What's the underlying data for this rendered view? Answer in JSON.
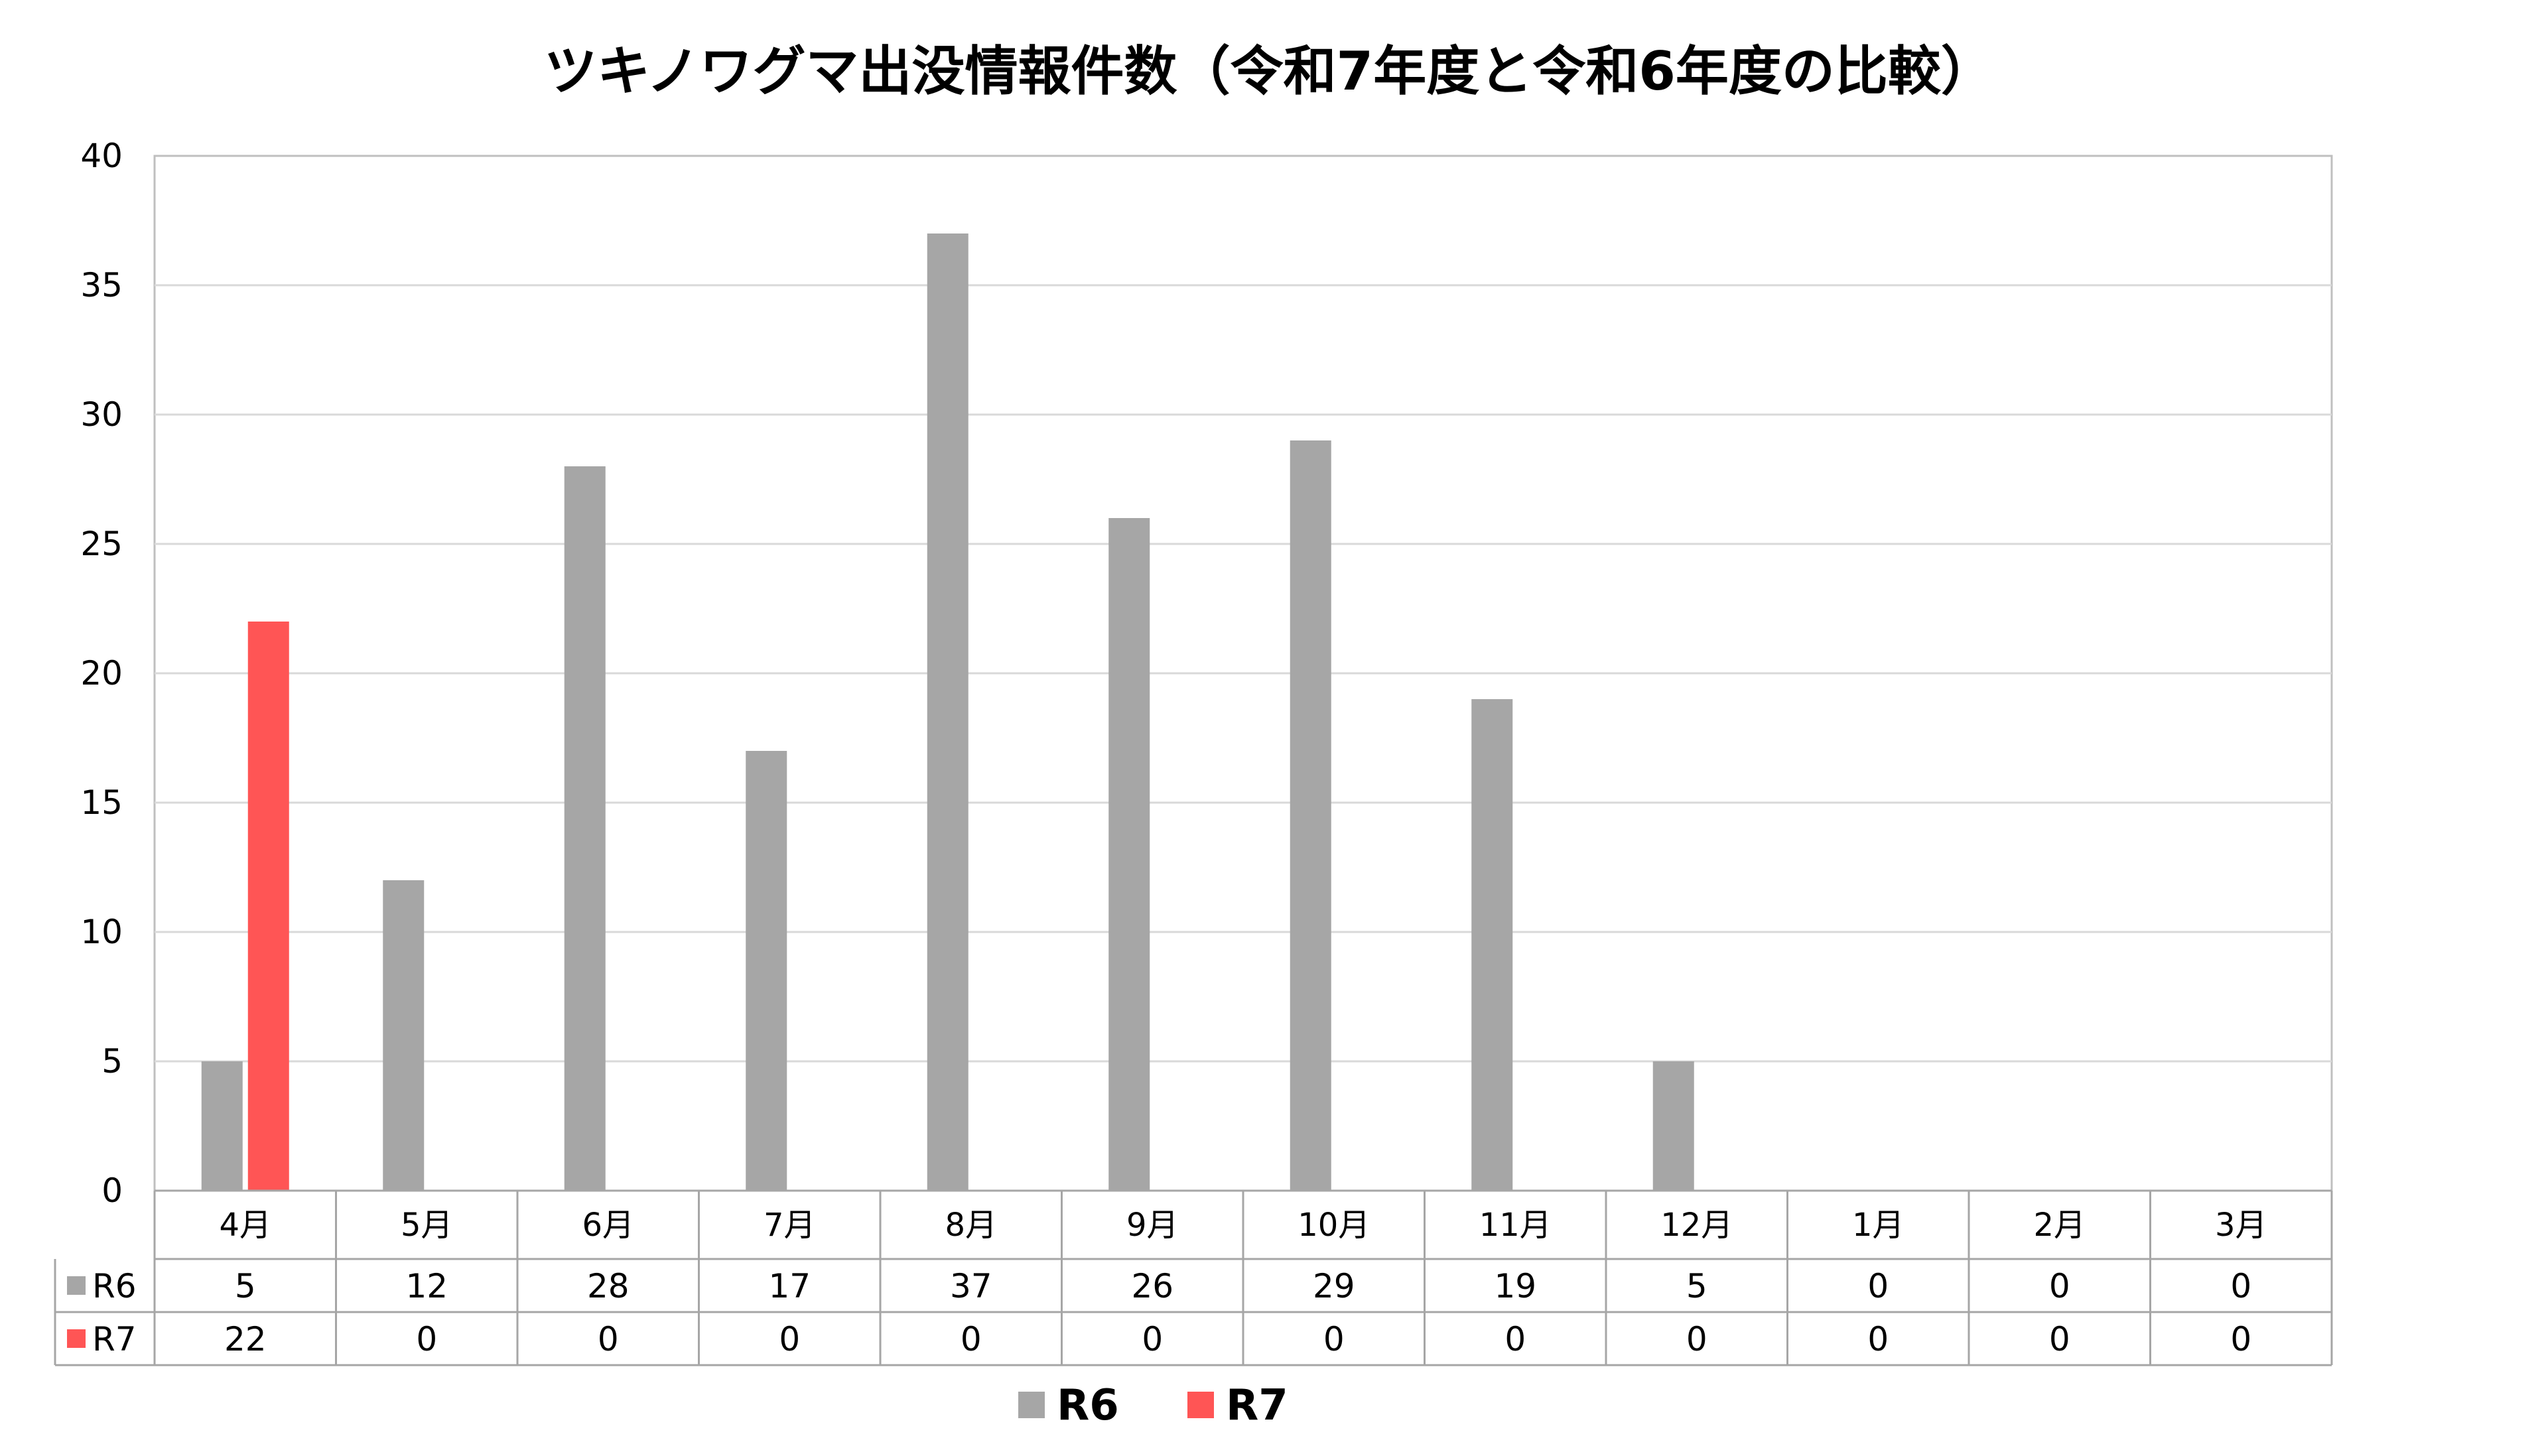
{
  "chart_data": {
    "type": "bar",
    "title": "ツキノワグマ出没情報件数（令和7年度と令和6年度の比較）",
    "categories": [
      "4月",
      "5月",
      "6月",
      "7月",
      "8月",
      "9月",
      "10月",
      "11月",
      "12月",
      "1月",
      "2月",
      "3月"
    ],
    "series": [
      {
        "name": "R6",
        "color": "#a6a6a6",
        "values": [
          5,
          12,
          28,
          17,
          37,
          26,
          29,
          19,
          5,
          0,
          0,
          0
        ]
      },
      {
        "name": "R7",
        "color": "#ff5555",
        "values": [
          22,
          0,
          0,
          0,
          0,
          0,
          0,
          0,
          0,
          0,
          0,
          0
        ]
      }
    ],
    "yticks": [
      0,
      5,
      10,
      15,
      20,
      25,
      30,
      35,
      40
    ],
    "ylim": [
      0,
      40
    ],
    "xlabel": "",
    "ylabel": "",
    "grid": true,
    "data_table": true,
    "legend_position": "bottom"
  }
}
